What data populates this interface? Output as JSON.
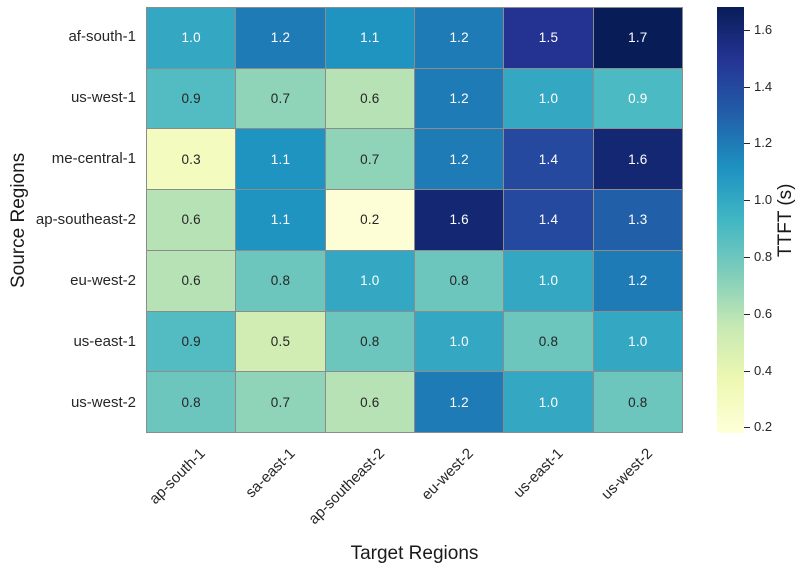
{
  "chart_data": {
    "type": "heatmap",
    "xlabel": "Target Regions",
    "ylabel": "Source Regions",
    "colorbar_label": "TTFT (s)",
    "x_categories": [
      "ap-south-1",
      "sa-east-1",
      "ap-southeast-2",
      "eu-west-2",
      "us-east-1",
      "us-west-2"
    ],
    "y_categories": [
      "af-south-1",
      "us-west-1",
      "me-central-1",
      "ap-southeast-2",
      "eu-west-2",
      "us-east-1",
      "us-west-2"
    ],
    "values": [
      [
        1.0,
        1.2,
        1.1,
        1.2,
        1.5,
        1.7
      ],
      [
        0.88,
        0.7,
        0.6,
        1.2,
        1.0,
        0.9
      ],
      [
        0.3,
        1.1,
        0.7,
        1.2,
        1.4,
        1.6
      ],
      [
        0.6,
        1.1,
        0.2,
        1.6,
        1.4,
        1.3
      ],
      [
        0.6,
        0.8,
        1.0,
        0.8,
        1.0,
        1.2
      ],
      [
        0.88,
        0.5,
        0.8,
        1.0,
        0.8,
        1.0
      ],
      [
        0.8,
        0.7,
        0.6,
        1.2,
        1.0,
        0.8
      ]
    ],
    "labels": [
      [
        "1.0",
        "1.2",
        "1.1",
        "1.2",
        "1.5",
        "1.7"
      ],
      [
        "0.9",
        "0.7",
        "0.6",
        "1.2",
        "1.0",
        "0.9"
      ],
      [
        "0.3",
        "1.1",
        "0.7",
        "1.2",
        "1.4",
        "1.6"
      ],
      [
        "0.6",
        "1.1",
        "0.2",
        "1.6",
        "1.4",
        "1.3"
      ],
      [
        "0.6",
        "0.8",
        "1.0",
        "0.8",
        "1.0",
        "1.2"
      ],
      [
        "0.9",
        "0.5",
        "0.8",
        "1.0",
        "0.8",
        "1.0"
      ],
      [
        "0.8",
        "0.7",
        "0.6",
        "1.2",
        "1.0",
        "0.8"
      ]
    ],
    "vmin": 0.18,
    "vmax": 1.68,
    "colorbar_ticks": [
      0.2,
      0.4,
      0.6,
      0.8,
      1.0,
      1.2,
      1.4,
      1.6
    ],
    "colormap": "YlGnBu",
    "colormap_stops": [
      "#ffffd9",
      "#edf8b1",
      "#c7e9b4",
      "#7fcdbb",
      "#41b6c4",
      "#1d91c0",
      "#225ea8",
      "#253494",
      "#081d58"
    ],
    "grid_line_color": "#8c8c8c",
    "annotation_dark_color": "#262626",
    "annotation_light_color": "#ffffff",
    "legend_position": "right",
    "grid": false
  }
}
